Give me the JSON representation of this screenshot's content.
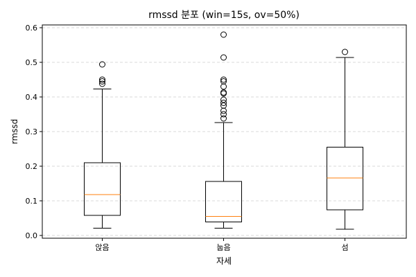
{
  "chart_data": {
    "type": "box",
    "title": "rmssd 분포 (win=15s, ov=50%)",
    "xlabel": "자세",
    "ylabel": "rmssd",
    "ylim": [
      -0.008,
      0.608
    ],
    "yticks": [
      "0.0",
      "0.1",
      "0.2",
      "0.3",
      "0.4",
      "0.5",
      "0.6"
    ],
    "grid": "y-dashed",
    "colors": {
      "box": "#000000",
      "median": "#ff7f0e",
      "grid": "#cccccc"
    },
    "categories": [
      "앉음",
      "눕음",
      "섬"
    ],
    "boxes": [
      {
        "category": "앉음",
        "whisker_low": 0.021,
        "q1": 0.058,
        "median": 0.118,
        "q3": 0.21,
        "whisker_high": 0.423,
        "outliers": [
          0.438,
          0.445,
          0.45,
          0.494
        ]
      },
      {
        "category": "눕음",
        "whisker_low": 0.021,
        "q1": 0.039,
        "median": 0.055,
        "q3": 0.156,
        "whisker_high": 0.326,
        "outliers": [
          0.338,
          0.35,
          0.36,
          0.375,
          0.383,
          0.392,
          0.41,
          0.413,
          0.43,
          0.445,
          0.45,
          0.514,
          0.58
        ]
      },
      {
        "category": "섬",
        "whisker_low": 0.018,
        "q1": 0.074,
        "median": 0.166,
        "q3": 0.255,
        "whisker_high": 0.514,
        "outliers": [
          0.53
        ]
      }
    ]
  }
}
